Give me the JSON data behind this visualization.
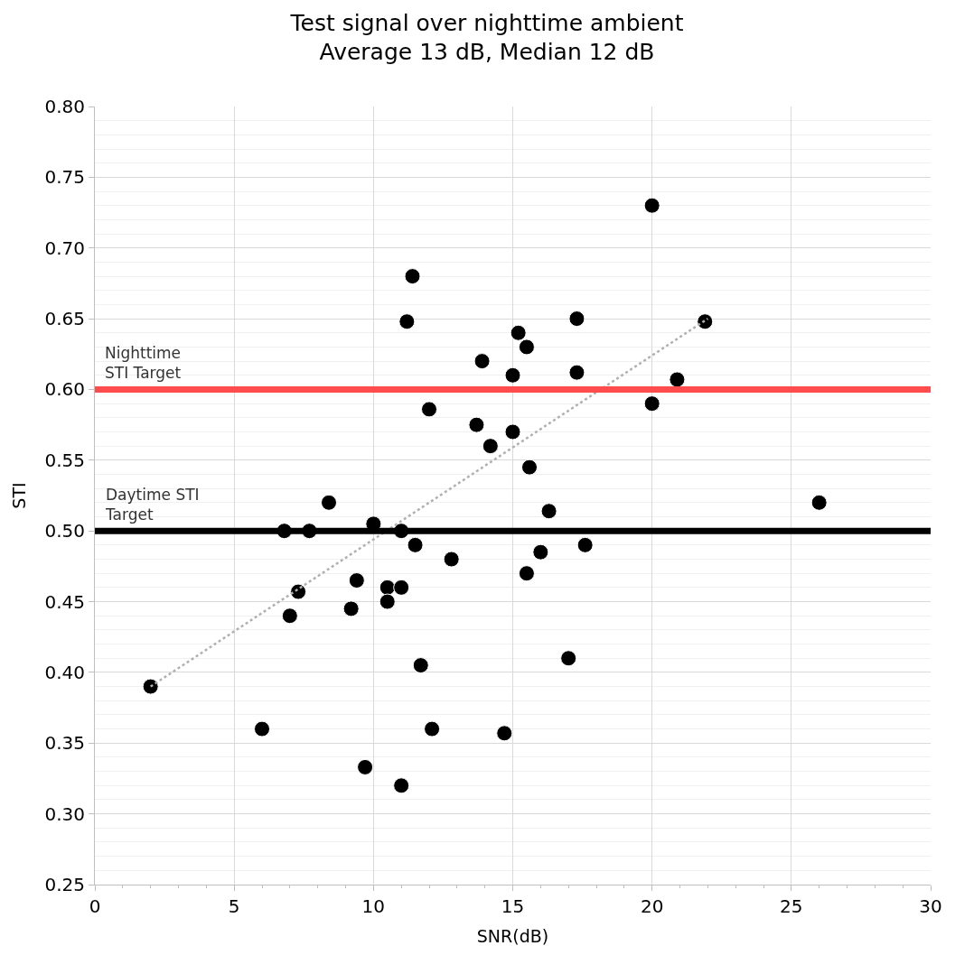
{
  "chart_data": {
    "type": "scatter",
    "title": "Test signal over nighttime ambient",
    "subtitle": "Average 13 dB, Median 12 dB",
    "xlabel": "SNR(dB)",
    "ylabel": "STI",
    "series": [
      {
        "color": "#000000",
        "marker": "circle",
        "x": [
          2.0,
          6.0,
          6.8,
          7.0,
          7.3,
          7.7,
          8.4,
          9.2,
          9.4,
          9.7,
          10.0,
          10.5,
          10.5,
          11.0,
          11.0,
          11.0,
          11.2,
          11.4,
          11.5,
          11.7,
          12.0,
          12.1,
          12.8,
          13.7,
          13.9,
          14.2,
          14.7,
          15.0,
          15.0,
          15.2,
          15.5,
          15.6,
          15.5,
          16.0,
          16.3,
          17.0,
          17.3,
          17.3,
          17.6,
          20.0,
          20.0,
          20.9,
          21.9,
          26.0
        ],
        "values": [
          0.39,
          0.36,
          0.5,
          0.44,
          0.457,
          0.5,
          0.52,
          0.445,
          0.465,
          0.333,
          0.505,
          0.46,
          0.45,
          0.5,
          0.46,
          0.32,
          0.648,
          0.68,
          0.49,
          0.405,
          0.586,
          0.36,
          0.48,
          0.575,
          0.62,
          0.56,
          0.357,
          0.57,
          0.61,
          0.64,
          0.63,
          0.545,
          0.47,
          0.485,
          0.514,
          0.41,
          0.612,
          0.65,
          0.49,
          0.73,
          0.59,
          0.607,
          0.648,
          0.52
        ]
      },
      {
        "type": "line",
        "color": "#b0b0b0",
        "line_style": "dotted",
        "marker": "none",
        "x": [
          2.0,
          22.0
        ],
        "values": [
          0.39,
          0.65
        ]
      }
    ],
    "xlim": [
      0,
      30
    ],
    "xticks": [
      0,
      5,
      10,
      15,
      20,
      25,
      30
    ],
    "ylim": [
      0.25,
      0.8
    ],
    "yticks": [
      {
        "value": 0.25,
        "label": "0.25"
      },
      {
        "value": 0.3,
        "label": "0.30"
      },
      {
        "value": 0.35,
        "label": "0.35"
      },
      {
        "value": 0.4,
        "label": "0.40"
      },
      {
        "value": 0.45,
        "label": "0.45"
      },
      {
        "value": 0.5,
        "label": "0.50"
      },
      {
        "value": 0.55,
        "label": "0.55"
      },
      {
        "value": 0.6,
        "label": "0.60"
      },
      {
        "value": 0.65,
        "label": "0.65"
      },
      {
        "value": 0.7,
        "label": "0.70"
      },
      {
        "value": 0.75,
        "label": "0.75"
      },
      {
        "value": 0.8,
        "label": "0.80"
      }
    ],
    "ref_lines": [
      {
        "axis": "y",
        "value": 0.6,
        "label": "Nighttime\nSTI Target",
        "color": "#ff4d4d"
      },
      {
        "axis": "y",
        "value": 0.5,
        "label": "Daytime STI\nTarget",
        "color": "#000000"
      }
    ],
    "grid": true
  }
}
